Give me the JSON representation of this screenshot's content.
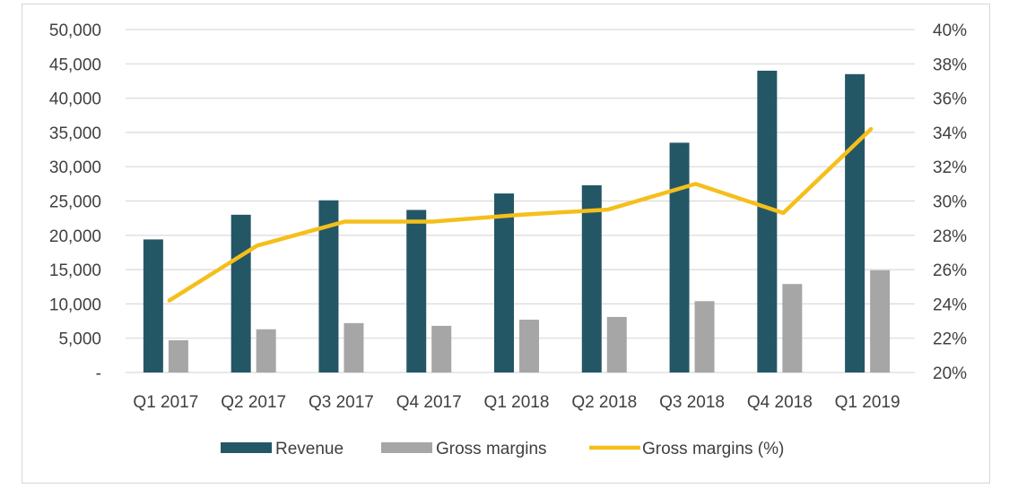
{
  "chart_data": {
    "type": "bar+line",
    "title": "",
    "categories": [
      "Q1 2017",
      "Q2 2017",
      "Q3 2017",
      "Q4 2017",
      "Q1 2018",
      "Q2 2018",
      "Q3 2018",
      "Q4 2018",
      "Q1 2019"
    ],
    "series": [
      {
        "name": "Revenue",
        "type": "bar",
        "axis": "left",
        "color": "#245766",
        "values": [
          19400,
          23000,
          25100,
          23700,
          26100,
          27300,
          33500,
          44000,
          43500
        ]
      },
      {
        "name": "Gross margins",
        "type": "bar",
        "axis": "left",
        "color": "#a6a6a6",
        "values": [
          4700,
          6300,
          7200,
          6800,
          7700,
          8100,
          10400,
          12900,
          14900
        ]
      },
      {
        "name": "Gross margins (%)",
        "type": "line",
        "axis": "right",
        "color": "#f5bf1b",
        "values": [
          24.2,
          27.4,
          28.8,
          28.8,
          29.2,
          29.5,
          31.0,
          29.3,
          34.2
        ]
      }
    ],
    "y_left": {
      "min": 0,
      "max": 50000,
      "step": 5000,
      "tick_labels": [
        "-",
        "5,000",
        "10,000",
        "15,000",
        "20,000",
        "25,000",
        "30,000",
        "35,000",
        "40,000",
        "45,000",
        "50,000"
      ]
    },
    "y_right": {
      "min": 20,
      "max": 40,
      "step": 2,
      "tick_labels": [
        "20%",
        "22%",
        "24%",
        "26%",
        "28%",
        "30%",
        "32%",
        "34%",
        "36%",
        "38%",
        "40%"
      ]
    },
    "grid": true,
    "legend": {
      "position": "bottom",
      "entries": [
        "Revenue",
        "Gross margins",
        "Gross margins (%)"
      ]
    }
  }
}
